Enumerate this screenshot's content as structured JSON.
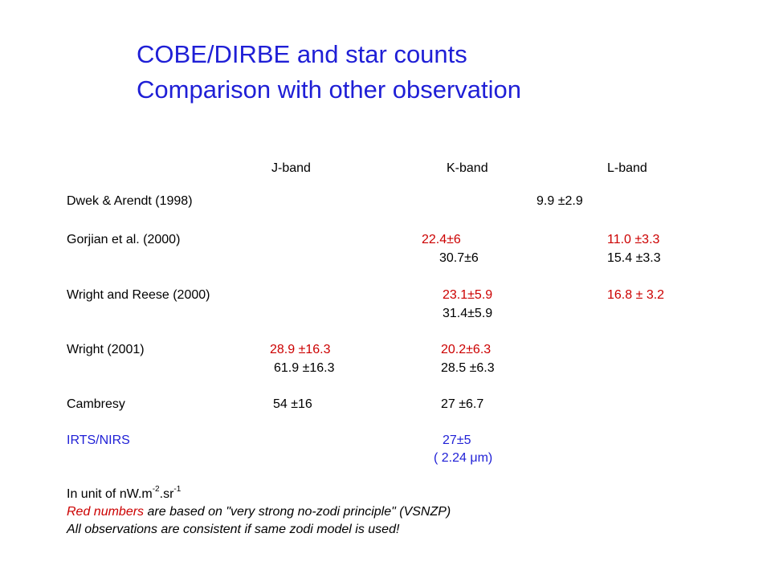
{
  "title": {
    "line1": "COBE/DIRBE and star counts",
    "line2": "Comparison with other observation"
  },
  "headers": {
    "j": "J-band",
    "k": "K-band",
    "l": "L-band"
  },
  "rows": {
    "dwek": {
      "label": "Dwek & Arendt (1998)",
      "l": "9.9 ±2.9"
    },
    "gorjian": {
      "label": "Gorjian et al.  (2000)",
      "k1": "22.4±6",
      "l1": "11.0 ±3.3",
      "k2": "30.7±6",
      "l2": "15.4 ±3.3"
    },
    "wright_reese": {
      "label": "Wright and Reese (2000)",
      "k1": "23.1±5.9",
      "l1": "16.8 ± 3.2",
      "k2": "31.4±5.9"
    },
    "wright2001": {
      "label": "Wright (2001)",
      "j1": "28.9 ±16.3",
      "k1": "20.2±6.3",
      "j2": "61.9 ±16.3",
      "k2": "28.5 ±6.3"
    },
    "cambresy": {
      "label": "Cambresy",
      "j": "54 ±16",
      "k": "27 ±6.7"
    },
    "irts": {
      "label": "IRTS/NIRS",
      "k": "27±5",
      "wavelength": "( 2.24 μm)"
    }
  },
  "notes": {
    "unit_prefix": "In unit of nW.m",
    "unit_exp1": "-2",
    "unit_mid": ".sr",
    "unit_exp2": "-1",
    "red_numbers": "Red numbers",
    "vsnzp_rest": " are based on \"very strong no-zodi principle\" (VSNZP)",
    "consistent": "All observations are consistent if same zodi model is used!"
  },
  "colors": {
    "title": "#1f1fd6",
    "red": "#cc0000",
    "blue": "#1f1fd6",
    "text": "#000000"
  }
}
